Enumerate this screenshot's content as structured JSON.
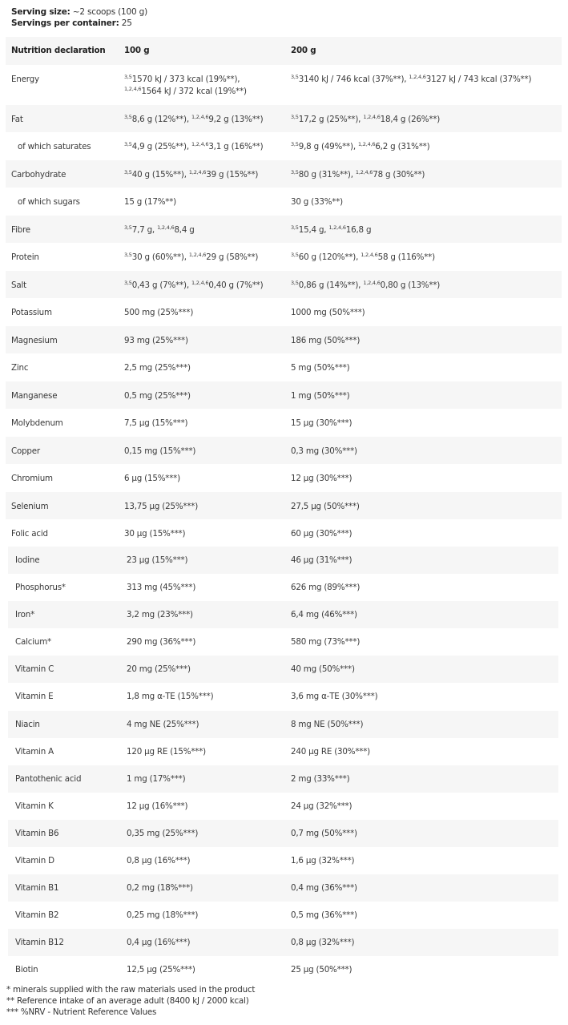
{
  "serving": {
    "size_label": "Serving size:",
    "size_value": " ~2 scoops (100 g)",
    "per_label": "Servings per container:",
    "per_value": " 25"
  },
  "header": {
    "name": "Nutrition declaration",
    "col1": "100 g",
    "col2": "200 g"
  },
  "table1": [
    {
      "name": "Energy",
      "tall": true,
      "c1": [
        {
          "sup": "3,5",
          "t": "1570 kJ / 373 kcal (19%**),"
        },
        {
          "br": true
        },
        {
          "sup": "1,2,4,6",
          "t": "1564 kJ / 372 kcal (19%**)"
        }
      ],
      "c2": [
        {
          "sup": "3,5",
          "t": "3140 kJ / 746 kcal (37%**), "
        },
        {
          "sup": "1,2,4,6",
          "t": "3127 kJ / 743 kcal (37%**)"
        }
      ]
    },
    {
      "name": "Fat",
      "c1": [
        {
          "sup": "3,5",
          "t": "8,6 g (12%**), "
        },
        {
          "sup": "1,2,4,6",
          "t": "9,2 g (13%**)"
        }
      ],
      "c2": [
        {
          "sup": "3,5",
          "t": "17,2 g (25%**), "
        },
        {
          "sup": "1,2,4,6",
          "t": "18,4 g (26%**)"
        }
      ]
    },
    {
      "name": "of which saturates",
      "indent": true,
      "c1": [
        {
          "sup": "3,5",
          "t": "4,9 g (25%**), "
        },
        {
          "sup": "1,2,4,6",
          "t": "3,1 g (16%**)"
        }
      ],
      "c2": [
        {
          "sup": "3,5",
          "t": "9,8 g (49%**), "
        },
        {
          "sup": "1,2,4,6",
          "t": "6,2 g (31%**)"
        }
      ]
    },
    {
      "name": "Carbohydrate",
      "c1": [
        {
          "sup": "3,5",
          "t": "40 g (15%**), "
        },
        {
          "sup": "1,2,4,6",
          "t": "39 g (15%**)"
        }
      ],
      "c2": [
        {
          "sup": "3,5",
          "t": "80 g (31%**), "
        },
        {
          "sup": "1,2,4,6",
          "t": "78 g (30%**)"
        }
      ]
    },
    {
      "name": "of which sugars",
      "indent": true,
      "c1": [
        {
          "t": "15 g (17%**)"
        }
      ],
      "c2": [
        {
          "t": "30 g (33%**)"
        }
      ]
    },
    {
      "name": "Fibre",
      "c1": [
        {
          "sup": "3,5",
          "t": "7,7 g, "
        },
        {
          "sup": "1,2,4,6",
          "t": "8,4 g"
        }
      ],
      "c2": [
        {
          "sup": "3,5",
          "t": "15,4 g, "
        },
        {
          "sup": "1,2,4,6",
          "t": "16,8 g"
        }
      ]
    },
    {
      "name": "Protein",
      "c1": [
        {
          "sup": "3,5",
          "t": "30 g (60%**), "
        },
        {
          "sup": "1,2,4,6",
          "t": "29 g (58%**)"
        }
      ],
      "c2": [
        {
          "sup": "3,5",
          "t": "60 g (120%**), "
        },
        {
          "sup": "1,2,4,6",
          "t": "58 g (116%**)"
        }
      ]
    },
    {
      "name": "Salt",
      "c1": [
        {
          "sup": "3,5",
          "t": "0,43 g (7%**), "
        },
        {
          "sup": "1,2,4,6",
          "t": "0,40 g (7%**)"
        }
      ],
      "c2": [
        {
          "sup": "3,5",
          "t": "0,86 g (14%**), "
        },
        {
          "sup": "1,2,4,6",
          "t": "0,80 g (13%**)"
        }
      ]
    },
    {
      "name": "Potassium",
      "c1": [
        {
          "t": "500 mg (25%***)"
        }
      ],
      "c2": [
        {
          "t": "1000 mg (50%***)"
        }
      ]
    },
    {
      "name": "Magnesium",
      "c1": [
        {
          "t": "93 mg (25%***)"
        }
      ],
      "c2": [
        {
          "t": "186 mg (50%***)"
        }
      ]
    },
    {
      "name": "Zinc",
      "c1": [
        {
          "t": "2,5 mg (25%***)"
        }
      ],
      "c2": [
        {
          "t": "5 mg (50%***)"
        }
      ]
    },
    {
      "name": "Manganese",
      "c1": [
        {
          "t": "0,5 mg (25%***)"
        }
      ],
      "c2": [
        {
          "t": "1 mg (50%***)"
        }
      ]
    },
    {
      "name": "Molybdenum",
      "c1": [
        {
          "t": "7,5 µg (15%***)"
        }
      ],
      "c2": [
        {
          "t": "15 µg (30%***)"
        }
      ]
    },
    {
      "name": "Copper",
      "c1": [
        {
          "t": "0,15 mg (15%***)"
        }
      ],
      "c2": [
        {
          "t": "0,3 mg (30%***)"
        }
      ]
    },
    {
      "name": "Chromium",
      "c1": [
        {
          "t": "6 µg (15%***)"
        }
      ],
      "c2": [
        {
          "t": "12 µg (30%***)"
        }
      ]
    },
    {
      "name": "Selenium",
      "c1": [
        {
          "t": "13,75 µg (25%***)"
        }
      ],
      "c2": [
        {
          "t": "27,5 µg (50%***)"
        }
      ]
    },
    {
      "name": "Folic acid",
      "c1": [
        {
          "t": "30 µg (15%***)"
        }
      ],
      "c2": [
        {
          "t": "60 µg (30%***)"
        }
      ]
    }
  ],
  "table2": [
    {
      "name": "Iodine",
      "c1": "23 µg (15%***)",
      "c2": "46 µg (31%***)"
    },
    {
      "name": "Phosphorus*",
      "c1": "313 mg (45%***)",
      "c2": "626 mg (89%***)"
    },
    {
      "name": "Iron*",
      "c1": "3,2 mg (23%***)",
      "c2": "6,4 mg (46%***)"
    },
    {
      "name": "Calcium*",
      "c1": "290 mg (36%***)",
      "c2": "580 mg (73%***)"
    },
    {
      "name": "Vitamin C",
      "c1": "20 mg (25%***)",
      "c2": "40 mg (50%***)"
    },
    {
      "name": "Vitamin E",
      "c1": "1,8 mg α-TE (15%***)",
      "c2": "3,6 mg α-TE  (30%***)"
    },
    {
      "name": "Niacin",
      "c1": "4 mg NE (25%***)",
      "c2": "8 mg NE (50%***)"
    },
    {
      "name": "Vitamin A",
      "c1": "120 µg RE (15%***)",
      "c2": "240 µg RE (30%***)"
    },
    {
      "name": "Pantothenic acid",
      "c1": "1 mg (17%***)",
      "c2": "2 mg (33%***)"
    },
    {
      "name": "Vitamin K",
      "c1": "12 µg (16%***)",
      "c2": "24 µg (32%***)"
    },
    {
      "name": "Vitamin B6",
      "c1": "0,35 mg (25%***)",
      "c2": "0,7 mg (50%***)"
    },
    {
      "name": "Vitamin D",
      "c1": "0,8 µg (16%***)",
      "c2": "1,6 µg (32%***)"
    },
    {
      "name": "Vitamin B1",
      "c1": "0,2 mg (18%***)",
      "c2": "0,4 mg (36%***)"
    },
    {
      "name": "Vitamin B2",
      "c1": "0,25 mg (18%***)",
      "c2": "0,5 mg (36%***)"
    },
    {
      "name": "Vitamin B12",
      "c1": "0,4 µg (16%***)",
      "c2": "0,8 µg (32%***)"
    },
    {
      "name": "Biotin",
      "c1": "12,5 µg (25%***)",
      "c2": "25 µg (50%***)"
    }
  ],
  "footnotes": [
    "* minerals supplied with the raw materials used in the product",
    "** Reference intake of an average adult (8400 kJ / 2000 kcal)",
    "*** %NRV - Nutrient Reference Values"
  ]
}
